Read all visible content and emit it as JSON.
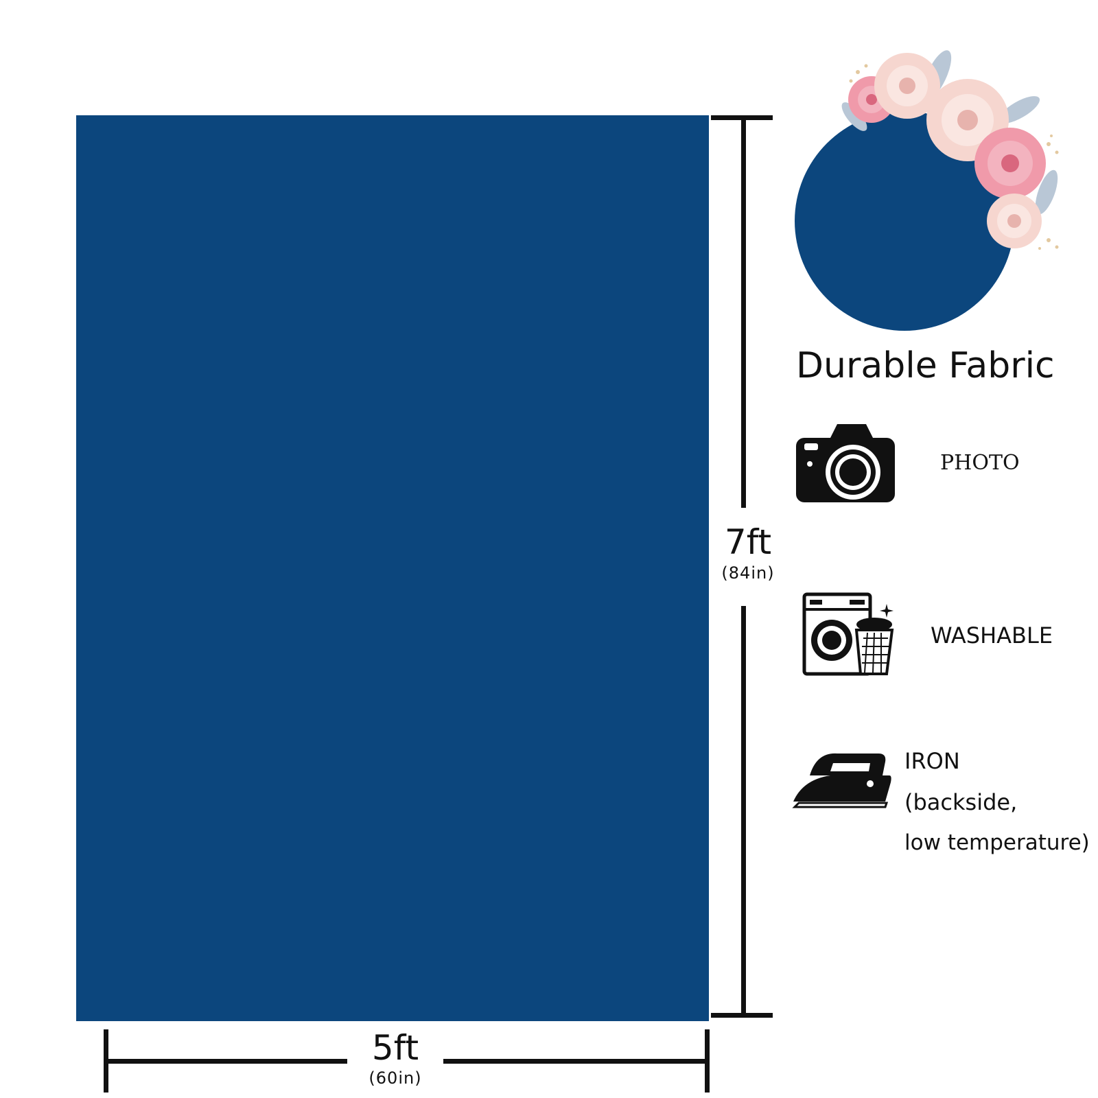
{
  "colors": {
    "backdrop": "#0c467d",
    "ink": "#111111",
    "rose_pink": "#f09aaa",
    "rose_cream": "#f6d6cf",
    "leaf": "#b9c7d6"
  },
  "dimensions": {
    "height_label": "7ft",
    "height_sub": "(84in)",
    "width_label": "5ft",
    "width_sub": "(60in)"
  },
  "feature_panel": {
    "heading": "Durable Fabric",
    "items": [
      {
        "icon": "camera-icon",
        "label": "PHOTO"
      },
      {
        "icon": "washing-machine-icon",
        "label": "WASHABLE"
      },
      {
        "icon": "iron-icon",
        "label": "IRON",
        "line2": "(backside,",
        "line3": "low temperature)"
      }
    ]
  },
  "decoration": {
    "icon": "flower-wreath-icon"
  }
}
